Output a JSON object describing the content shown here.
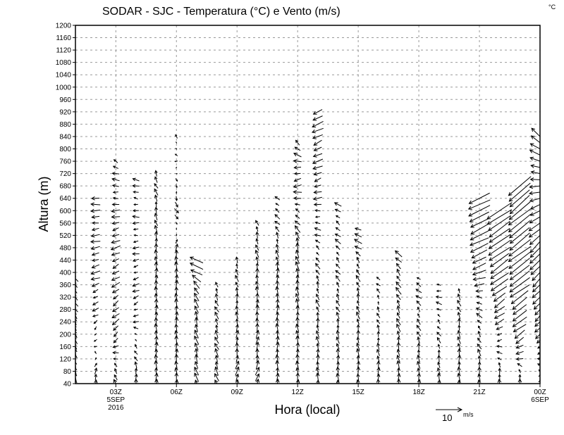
{
  "chart_data": {
    "type": "vector",
    "title": "SODAR - SJC - Temperatura (°C) e Vento (m/s)",
    "corner_unit": "°C",
    "xlabel": "Hora (local)",
    "ylabel": "Altura (m)",
    "ylim": [
      40,
      1200
    ],
    "y_ticks": [
      40,
      80,
      120,
      160,
      200,
      240,
      280,
      320,
      360,
      400,
      440,
      480,
      520,
      560,
      600,
      640,
      680,
      720,
      760,
      800,
      840,
      880,
      920,
      960,
      1000,
      1040,
      1080,
      1120,
      1160,
      1200
    ],
    "x_range_hours": [
      1,
      24
    ],
    "x_ticks": [
      {
        "hour": 3,
        "label": "03Z",
        "sub1": "5SEP",
        "sub2": "2016"
      },
      {
        "hour": 6,
        "label": "06Z"
      },
      {
        "hour": 9,
        "label": "09Z"
      },
      {
        "hour": 12,
        "label": "12Z"
      },
      {
        "hour": 15,
        "label": "15Z"
      },
      {
        "hour": 18,
        "label": "18Z"
      },
      {
        "hour": 21,
        "label": "21Z"
      },
      {
        "hour": 24,
        "label": "00Z",
        "sub1": "6SEP"
      }
    ],
    "grid": true,
    "reference_vector": {
      "value": "10",
      "unit": "m/s",
      "speed": 10
    },
    "level_step_m": 20,
    "columns": [
      {
        "hour": 1,
        "top": 380,
        "profile": [
          [
            40,
            0,
            3
          ],
          [
            380,
            -2,
            2
          ]
        ]
      },
      {
        "hour": 2,
        "top": 650,
        "profile": [
          [
            40,
            1,
            3
          ],
          [
            200,
            -1,
            -1
          ],
          [
            400,
            -3,
            -1
          ],
          [
            650,
            -3,
            0
          ]
        ]
      },
      {
        "hour": 3,
        "top": 770,
        "profile": [
          [
            40,
            -1,
            3
          ],
          [
            200,
            -2,
            -2
          ],
          [
            500,
            -3,
            -1
          ],
          [
            770,
            -2,
            1
          ]
        ]
      },
      {
        "hour": 4,
        "top": 710,
        "profile": [
          [
            40,
            0,
            3
          ],
          [
            300,
            -2,
            -1
          ],
          [
            710,
            -2,
            0.5
          ]
        ]
      },
      {
        "hour": 5,
        "top": 730,
        "profile": [
          [
            40,
            0,
            3
          ],
          [
            400,
            0,
            3
          ],
          [
            730,
            -1,
            2
          ]
        ]
      },
      {
        "hour": 6,
        "top": 840,
        "profile": [
          [
            40,
            0,
            3
          ],
          [
            460,
            0,
            3
          ],
          [
            600,
            1,
            -2
          ],
          [
            840,
            -1,
            1
          ]
        ]
      },
      {
        "hour": 7,
        "top": 440,
        "profile": [
          [
            40,
            -1,
            3
          ],
          [
            300,
            -1,
            3
          ],
          [
            440,
            -5,
            2
          ]
        ]
      },
      {
        "hour": 8,
        "top": 370,
        "profile": [
          [
            40,
            -1,
            3
          ],
          [
            370,
            -1,
            2
          ]
        ]
      },
      {
        "hour": 9,
        "top": 450,
        "profile": [
          [
            40,
            1,
            3
          ],
          [
            450,
            -1,
            2
          ]
        ]
      },
      {
        "hour": 10,
        "top": 570,
        "profile": [
          [
            40,
            1,
            3
          ],
          [
            300,
            0,
            3
          ],
          [
            570,
            -1,
            2
          ]
        ]
      },
      {
        "hour": 11,
        "top": 640,
        "profile": [
          [
            40,
            0,
            3
          ],
          [
            400,
            0,
            3
          ],
          [
            640,
            -2,
            1
          ]
        ]
      },
      {
        "hour": 12,
        "top": 820,
        "profile": [
          [
            40,
            0,
            3
          ],
          [
            500,
            -1,
            3
          ],
          [
            700,
            -3,
            -1
          ],
          [
            820,
            -2,
            2
          ]
        ]
      },
      {
        "hour": 13,
        "top": 930,
        "profile": [
          [
            40,
            0,
            3
          ],
          [
            400,
            -1,
            2
          ],
          [
            700,
            -3,
            -1
          ],
          [
            930,
            -4,
            -2
          ]
        ]
      },
      {
        "hour": 14,
        "top": 620,
        "profile": [
          [
            40,
            0,
            3
          ],
          [
            620,
            -2,
            1
          ]
        ]
      },
      {
        "hour": 15,
        "top": 550,
        "profile": [
          [
            40,
            0,
            3
          ],
          [
            400,
            -1,
            2
          ],
          [
            550,
            -3,
            1
          ]
        ]
      },
      {
        "hour": 16,
        "top": 390,
        "profile": [
          [
            40,
            0,
            3
          ],
          [
            390,
            -1,
            1
          ]
        ]
      },
      {
        "hour": 17,
        "top": 460,
        "profile": [
          [
            40,
            0,
            3
          ],
          [
            460,
            -2,
            2
          ]
        ]
      },
      {
        "hour": 18,
        "top": 390,
        "profile": [
          [
            40,
            0,
            3
          ],
          [
            390,
            -2,
            1
          ]
        ]
      },
      {
        "hour": 19,
        "top": 370,
        "profile": [
          [
            40,
            0,
            3
          ],
          [
            370,
            -2,
            0
          ]
        ]
      },
      {
        "hour": 20,
        "top": 350,
        "profile": [
          [
            40,
            0,
            3
          ],
          [
            350,
            -1,
            2
          ]
        ]
      },
      {
        "hour": 21,
        "top": 640,
        "profile": [
          [
            40,
            0,
            3
          ],
          [
            300,
            -2,
            1
          ],
          [
            450,
            -6,
            -3
          ],
          [
            640,
            -8,
            -4
          ]
        ]
      },
      {
        "hour": 22,
        "top": 600,
        "profile": [
          [
            40,
            0,
            3
          ],
          [
            250,
            -3,
            -2
          ],
          [
            400,
            -7,
            -5
          ],
          [
            600,
            -9,
            -6
          ]
        ]
      },
      {
        "hour": 23,
        "top": 680,
        "profile": [
          [
            40,
            0,
            3
          ],
          [
            200,
            -4,
            -3
          ],
          [
            400,
            -8,
            -6
          ],
          [
            680,
            -8,
            -7
          ]
        ]
      },
      {
        "hour": 24,
        "top": 840,
        "profile": [
          [
            40,
            0,
            3
          ],
          [
            200,
            -3,
            -3
          ],
          [
            500,
            -8,
            -8
          ],
          [
            840,
            -7,
            6
          ]
        ]
      }
    ]
  }
}
